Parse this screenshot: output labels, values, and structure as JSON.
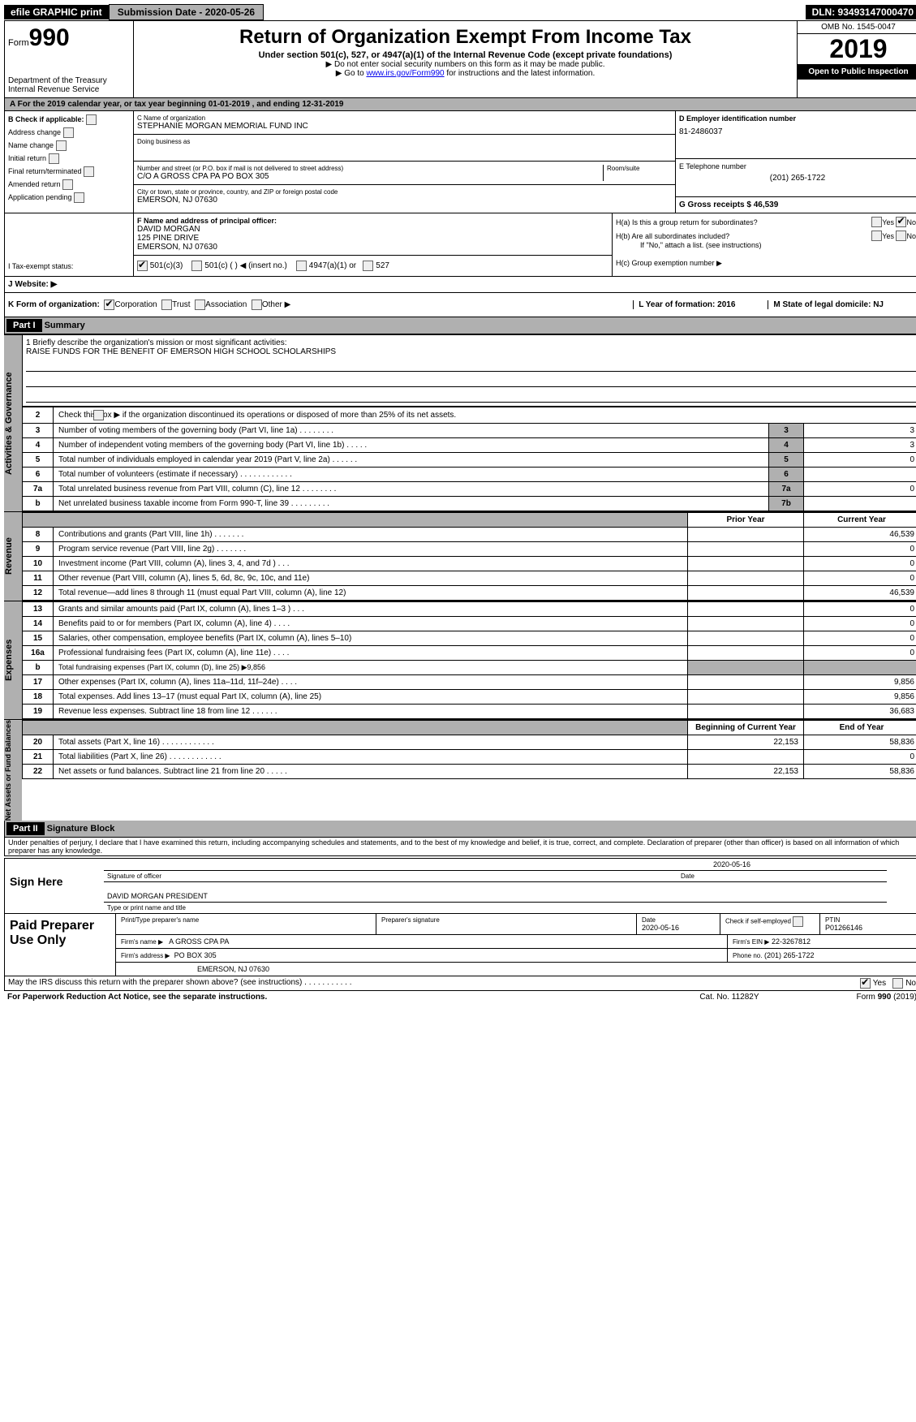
{
  "top": {
    "efile": "efile GRAPHIC print",
    "submission": "Submission Date - 2020-05-26",
    "dln": "DLN: 93493147000470"
  },
  "header": {
    "form_label": "Form",
    "form_num": "990",
    "dept1": "Department of the Treasury",
    "dept2": "Internal Revenue Service",
    "title": "Return of Organization Exempt From Income Tax",
    "subtitle": "Under section 501(c), 527, or 4947(a)(1) of the Internal Revenue Code (except private foundations)",
    "note1": "▶ Do not enter social security numbers on this form as it may be made public.",
    "note2_pre": "▶ Go to ",
    "note2_link": "www.irs.gov/Form990",
    "note2_post": " for instructions and the latest information.",
    "omb": "OMB No. 1545-0047",
    "year": "2019",
    "public": "Open to Public Inspection"
  },
  "periodA": "A   For the 2019 calendar year, or tax year beginning 01-01-2019        , and ending 12-31-2019",
  "boxB": {
    "label": "B  Check if applicable:",
    "items": [
      "Address change",
      "Name change",
      "Initial return",
      "Final return/terminated",
      "Amended return",
      "Application pending"
    ]
  },
  "boxC": {
    "name_label": "C Name of organization",
    "name": "STEPHANIE MORGAN MEMORIAL FUND INC",
    "dba_label": "Doing business as",
    "street_label": "Number and street (or P.O. box if mail is not delivered to street address)",
    "room_label": "Room/suite",
    "street": "C/O A GROSS CPA PA PO BOX 305",
    "city_label": "City or town, state or province, country, and ZIP or foreign postal code",
    "city": "EMERSON, NJ  07630"
  },
  "boxD": {
    "label": "D Employer identification number",
    "ein": "81-2486037",
    "e_label": "E Telephone number",
    "phone": "(201) 265-1722",
    "g": "G Gross receipts $ 46,539"
  },
  "boxF": {
    "label": "F Name and address of principal officer:",
    "name": "DAVID MORGAN",
    "addr1": "125 PINE DRIVE",
    "addr2": "EMERSON, NJ  07630"
  },
  "boxH": {
    "a": "H(a)    Is this a group return for subordinates?",
    "b": "H(b)   Are all subordinates included?",
    "b_note": "If \"No,\" attach a list. (see instructions)",
    "c": "H(c)   Group exemption number ▶",
    "yes": "Yes",
    "no": "No"
  },
  "rowI": "I    Tax-exempt status:",
  "rowI_opts": [
    "501(c)(3)",
    "501(c) (  ) ◀ (insert no.)",
    "4947(a)(1) or",
    "527"
  ],
  "rowJ": "J   Website: ▶",
  "rowK": "K Form of organization:",
  "rowK_opts": [
    "Corporation",
    "Trust",
    "Association",
    "Other ▶"
  ],
  "rowL": "L Year of formation: 2016",
  "rowM": "M State of legal domicile: NJ",
  "part1": {
    "header": "Part I",
    "title": "Summary",
    "mission_label": "1  Briefly describe the organization's mission or most significant activities:",
    "mission": "RAISE FUNDS FOR THE BENEFIT OF EMERSON HIGH SCHOOL SCHOLARSHIPS",
    "line2": "Check this box ▶      if the organization discontinued its operations or disposed of more than 25% of its net assets."
  },
  "sides": {
    "gov": "Activities & Governance",
    "rev": "Revenue",
    "exp": "Expenses",
    "net": "Net Assets or Fund Balances"
  },
  "gov_lines": [
    {
      "n": "3",
      "d": "Number of voting members of the governing body (Part VI, line 1a)   .      .      .      .      .      .      .      .",
      "i": "3",
      "v": "3"
    },
    {
      "n": "4",
      "d": "Number of independent voting members of the governing body (Part VI, line 1b)   .      .      .      .      .",
      "i": "4",
      "v": "3"
    },
    {
      "n": "5",
      "d": "Total number of individuals employed in calendar year 2019 (Part V, line 2a)   .      .      .      .      .      .",
      "i": "5",
      "v": "0"
    },
    {
      "n": "6",
      "d": "Total number of volunteers (estimate if necessary)   .      .      .      .      .      .      .      .      .      .      .      .",
      "i": "6",
      "v": ""
    },
    {
      "n": "7a",
      "d": "Total unrelated business revenue from Part VIII, column (C), line 12   .      .      .      .      .      .      .      .",
      "i": "7a",
      "v": "0"
    },
    {
      "n": "b",
      "d": "Net unrelated business taxable income from Form 990-T, line 39   .      .      .      .      .      .      .      .      .",
      "i": "7b",
      "v": ""
    }
  ],
  "col_headers": {
    "prior": "Prior Year",
    "current": "Current Year"
  },
  "rev_lines": [
    {
      "n": "8",
      "d": "Contributions and grants (Part VIII, line 1h)   .      .      .      .      .      .      .",
      "p": "",
      "c": "46,539"
    },
    {
      "n": "9",
      "d": "Program service revenue (Part VIII, line 2g)   .      .      .      .      .      .      .",
      "p": "",
      "c": "0"
    },
    {
      "n": "10",
      "d": "Investment income (Part VIII, column (A), lines 3, 4, and 7d )   .      .      .",
      "p": "",
      "c": "0"
    },
    {
      "n": "11",
      "d": "Other revenue (Part VIII, column (A), lines 5, 6d, 8c, 9c, 10c, and 11e)",
      "p": "",
      "c": "0"
    },
    {
      "n": "12",
      "d": "Total revenue—add lines 8 through 11 (must equal Part VIII, column (A), line 12)",
      "p": "",
      "c": "46,539"
    }
  ],
  "exp_lines": [
    {
      "n": "13",
      "d": "Grants and similar amounts paid (Part IX, column (A), lines 1–3 )   .      .      .",
      "p": "",
      "c": "0"
    },
    {
      "n": "14",
      "d": "Benefits paid to or for members (Part IX, column (A), line 4)   .      .      .      .",
      "p": "",
      "c": "0"
    },
    {
      "n": "15",
      "d": "Salaries, other compensation, employee benefits (Part IX, column (A), lines 5–10)",
      "p": "",
      "c": "0"
    },
    {
      "n": "16a",
      "d": "Professional fundraising fees (Part IX, column (A), line 11e)   .      .      .      .",
      "p": "",
      "c": "0"
    },
    {
      "n": "b",
      "d": "Total fundraising expenses (Part IX, column (D), line 25) ▶9,856",
      "p": "shade",
      "c": "shade"
    },
    {
      "n": "17",
      "d": "Other expenses (Part IX, column (A), lines 11a–11d, 11f–24e)   .      .      .      .",
      "p": "",
      "c": "9,856"
    },
    {
      "n": "18",
      "d": "Total expenses. Add lines 13–17 (must equal Part IX, column (A), line 25)",
      "p": "",
      "c": "9,856"
    },
    {
      "n": "19",
      "d": "Revenue less expenses. Subtract line 18 from line 12   .      .      .      .      .      .",
      "p": "",
      "c": "36,683"
    }
  ],
  "net_headers": {
    "b": "Beginning of Current Year",
    "e": "End of Year"
  },
  "net_lines": [
    {
      "n": "20",
      "d": "Total assets (Part X, line 16)   .      .      .      .      .      .      .      .      .      .      .      .",
      "p": "22,153",
      "c": "58,836"
    },
    {
      "n": "21",
      "d": "Total liabilities (Part X, line 26)   .      .      .      .      .      .      .      .      .      .      .      .",
      "p": "",
      "c": "0"
    },
    {
      "n": "22",
      "d": "Net assets or fund balances. Subtract line 21 from line 20   .      .      .      .      .",
      "p": "22,153",
      "c": "58,836"
    }
  ],
  "part2": {
    "header": "Part II",
    "title": "Signature Block",
    "penalties": "Under penalties of perjury, I declare that I have examined this return, including accompanying schedules and statements, and to the best of my knowledge and belief, it is true, correct, and complete. Declaration of preparer (other than officer) is based on all information of which preparer has any knowledge."
  },
  "sign": {
    "here": "Sign Here",
    "sig_label": "Signature of officer",
    "date": "2020-05-16",
    "date_label": "Date",
    "name": "DAVID MORGAN  PRESIDENT",
    "name_label": "Type or print name and title"
  },
  "preparer": {
    "label": "Paid Preparer Use Only",
    "print_label": "Print/Type preparer's name",
    "sig_label": "Preparer's signature",
    "date_label": "Date",
    "date": "2020-05-16",
    "check_label": "Check       if self-employed",
    "ptin_label": "PTIN",
    "ptin": "P01266146",
    "firm_name_label": "Firm's name     ▶",
    "firm_name": "A GROSS CPA PA",
    "firm_ein_label": "Firm's EIN ▶",
    "firm_ein": "22-3267812",
    "firm_addr_label": "Firm's address ▶",
    "firm_addr1": "PO BOX 305",
    "firm_addr2": "EMERSON, NJ  07630",
    "phone_label": "Phone no.",
    "phone": "(201) 265-1722"
  },
  "may_irs": "May the IRS discuss this return with the preparer shown above? (see instructions)   .      .      .      .      .      .      .      .      .      .      .",
  "footer": {
    "left": "For Paperwork Reduction Act Notice, see the separate instructions.",
    "center": "Cat. No. 11282Y",
    "right": "Form 990 (2019)"
  }
}
